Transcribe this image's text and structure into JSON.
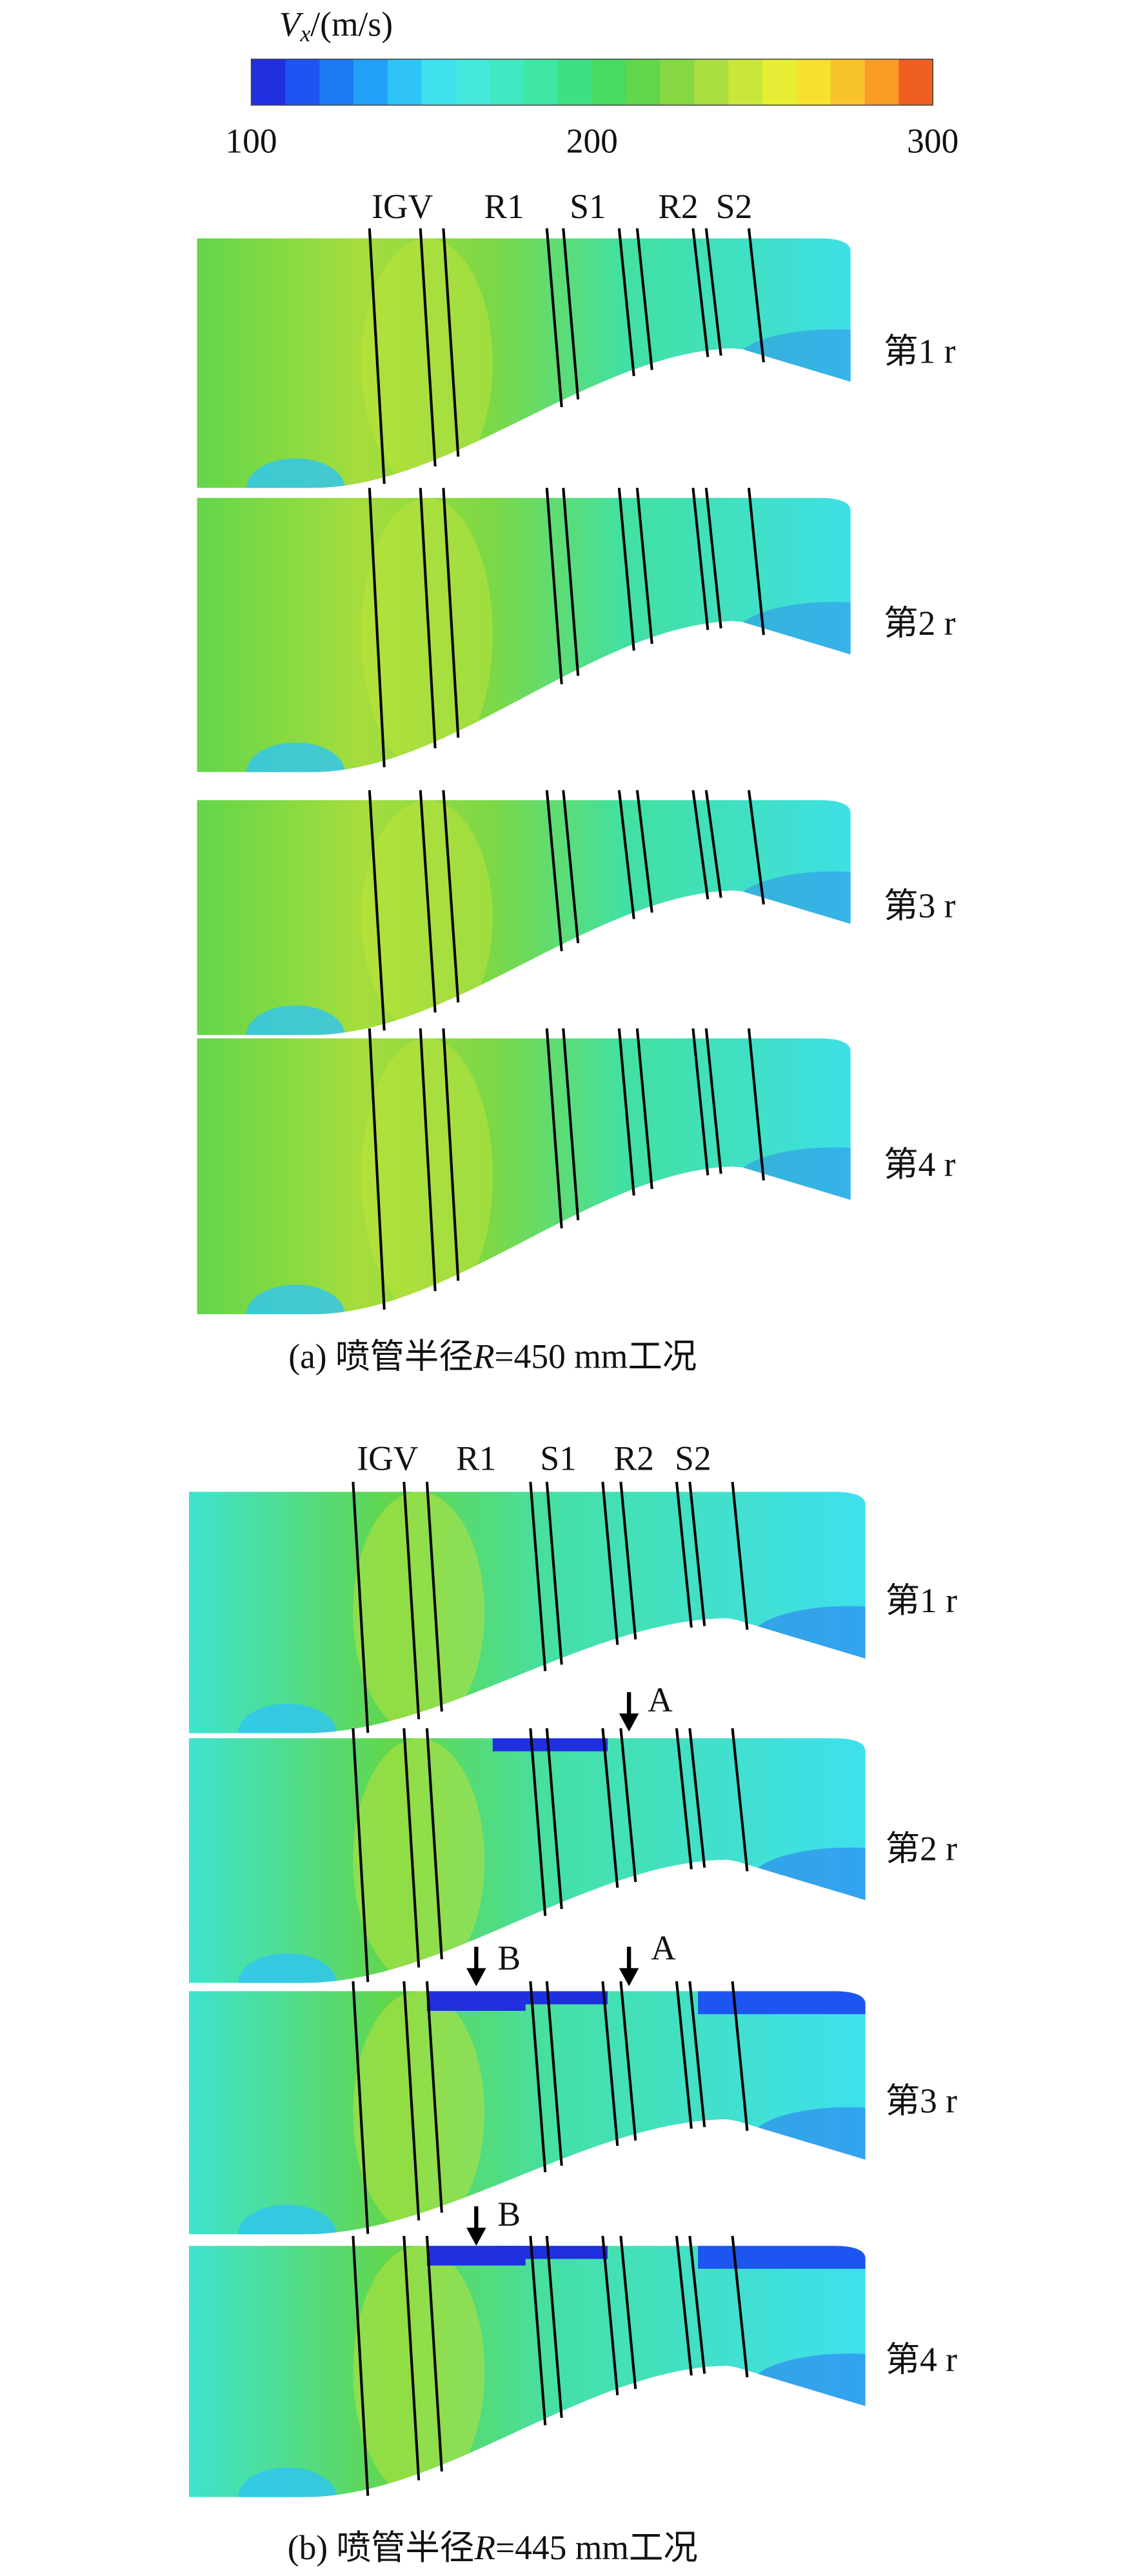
{
  "colorbar": {
    "title": {
      "symbol": "V",
      "subscript": "x",
      "unit": "/(m/s)"
    },
    "range": [
      100,
      300
    ],
    "ticks": [
      100,
      200,
      300
    ],
    "colors": [
      "#1f2fe0",
      "#1c55f0",
      "#1d7af5",
      "#22a0f7",
      "#2ec4f5",
      "#3ee0ee",
      "#45e8dc",
      "#42e8c2",
      "#3fe6a4",
      "#3ee086",
      "#48da62",
      "#62d64a",
      "#86d942",
      "#a9df3e",
      "#c9e63a",
      "#e6ed35",
      "#f5e12e",
      "#f8c42a",
      "#f79d26",
      "#ef5e22"
    ]
  },
  "groups": [
    {
      "stage_labels": [
        "IGV",
        "R1",
        "S1",
        "R2",
        "S2"
      ],
      "rows": [
        "第1 r",
        "第2 r",
        "第3 r",
        "第4 r"
      ],
      "caption": {
        "prefix": "(a) 喷管半径",
        "var": "R",
        "suffix": "=450 mm工况"
      },
      "annotations": []
    },
    {
      "stage_labels": [
        "IGV",
        "R1",
        "S1",
        "R2",
        "S2"
      ],
      "rows": [
        "第1 r",
        "第2 r",
        "第3 r",
        "第4 r"
      ],
      "caption": {
        "prefix": "(b) 喷管半径",
        "var": "R",
        "suffix": "=445 mm工况"
      },
      "annotations": [
        {
          "label": "A"
        },
        {
          "label": "B"
        },
        {
          "label": "A"
        },
        {
          "label": "B"
        }
      ]
    }
  ]
}
